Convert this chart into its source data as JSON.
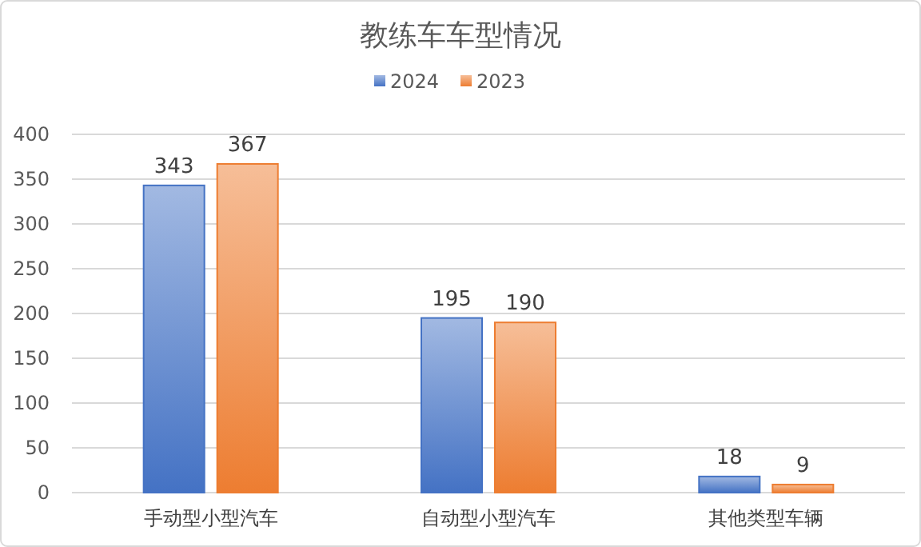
{
  "chart_data": {
    "type": "bar",
    "title": "教练车车型情况",
    "categories": [
      "手动型小型汽车",
      "自动型小型汽车",
      "其他类型车辆"
    ],
    "series": [
      {
        "name": "2024",
        "color": "#4472c4",
        "values": [
          343,
          195,
          18
        ]
      },
      {
        "name": "2023",
        "color": "#ed7d31",
        "values": [
          367,
          190,
          9
        ]
      }
    ],
    "ylim": [
      0,
      400
    ],
    "yticks": [
      0,
      50,
      100,
      150,
      200,
      250,
      300,
      350,
      400
    ],
    "grid": "y",
    "legend": "top",
    "data_labels": true
  }
}
